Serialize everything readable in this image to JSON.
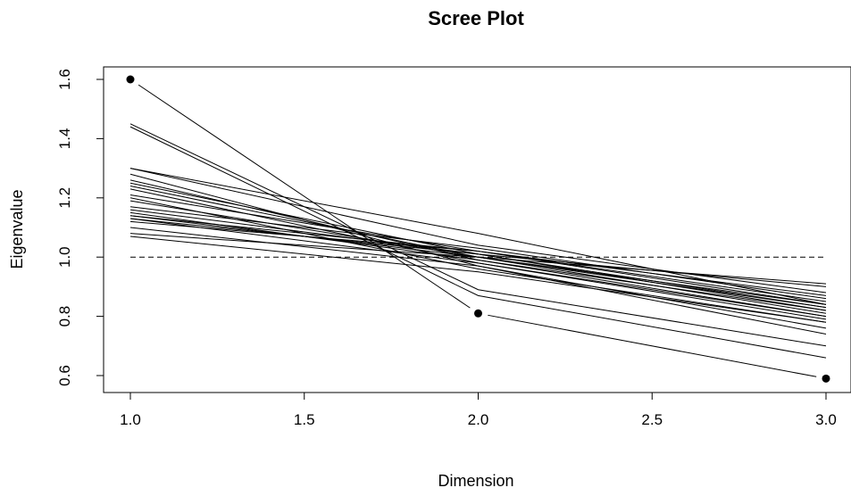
{
  "chart_data": {
    "type": "line",
    "title": "Scree Plot",
    "xlabel": "Dimension",
    "ylabel": "Eigenvalue",
    "xlim": [
      1.0,
      3.0
    ],
    "ylim": [
      0.55,
      1.65
    ],
    "x": [
      1,
      2,
      3
    ],
    "x_ticks": [
      "1.0",
      "1.5",
      "2.0",
      "2.5",
      "3.0"
    ],
    "y_ticks": [
      "0.6",
      "0.8",
      "1.0",
      "1.2",
      "1.4",
      "1.6"
    ],
    "reference_line": {
      "y": 1.0,
      "style": "dashed"
    },
    "observed": {
      "values": [
        1.6,
        0.81,
        0.59
      ],
      "marker": "filled-circle"
    },
    "simulated_series": [
      {
        "values": [
          1.45,
          0.89,
          0.7
        ]
      },
      {
        "values": [
          1.44,
          0.87,
          0.66
        ]
      },
      {
        "values": [
          1.3,
          1.08,
          0.84
        ]
      },
      {
        "values": [
          1.3,
          1.04,
          0.88
        ]
      },
      {
        "values": [
          1.28,
          0.97,
          0.76
        ]
      },
      {
        "values": [
          1.26,
          0.99,
          0.8
        ]
      },
      {
        "values": [
          1.25,
          1.01,
          0.82
        ]
      },
      {
        "values": [
          1.24,
          1.0,
          0.83
        ]
      },
      {
        "values": [
          1.23,
          0.98,
          0.79
        ]
      },
      {
        "values": [
          1.21,
          1.02,
          0.84
        ]
      },
      {
        "values": [
          1.2,
          0.96,
          0.78
        ]
      },
      {
        "values": [
          1.19,
          1.0,
          0.81
        ]
      },
      {
        "values": [
          1.17,
          1.03,
          0.86
        ]
      },
      {
        "values": [
          1.16,
          1.01,
          0.83
        ]
      },
      {
        "values": [
          1.15,
          0.99,
          0.82
        ]
      },
      {
        "values": [
          1.14,
          1.02,
          0.85
        ]
      },
      {
        "values": [
          1.14,
          1.0,
          0.84
        ]
      },
      {
        "values": [
          1.13,
          1.01,
          0.9
        ]
      },
      {
        "values": [
          1.13,
          0.98,
          0.8
        ]
      },
      {
        "values": [
          1.12,
          1.02,
          0.87
        ]
      },
      {
        "values": [
          1.1,
          0.97,
          0.74
        ]
      },
      {
        "values": [
          1.08,
          1.0,
          0.91
        ]
      },
      {
        "values": [
          1.07,
          0.95,
          0.78
        ]
      }
    ]
  }
}
